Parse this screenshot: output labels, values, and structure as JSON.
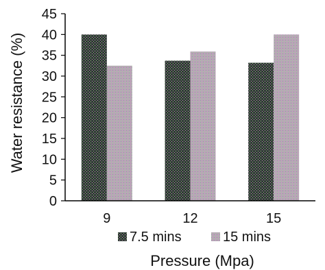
{
  "chart_data": {
    "type": "bar",
    "categories": [
      "9",
      "12",
      "15"
    ],
    "series": [
      {
        "name": "7.5 mins",
        "values": [
          40,
          33.7,
          33.2
        ],
        "color": "#2f4f3a"
      },
      {
        "name": "15 mins",
        "values": [
          32.5,
          35.9,
          40
        ],
        "color": "#b9a3b8"
      }
    ],
    "xlabel": "Pressure (Mpa)",
    "ylabel": "Water resistance (%)",
    "ylim": [
      0,
      45
    ],
    "yticks": [
      0,
      5,
      10,
      15,
      20,
      25,
      30,
      35,
      40,
      45
    ],
    "grid": false,
    "legend": "bottom"
  }
}
